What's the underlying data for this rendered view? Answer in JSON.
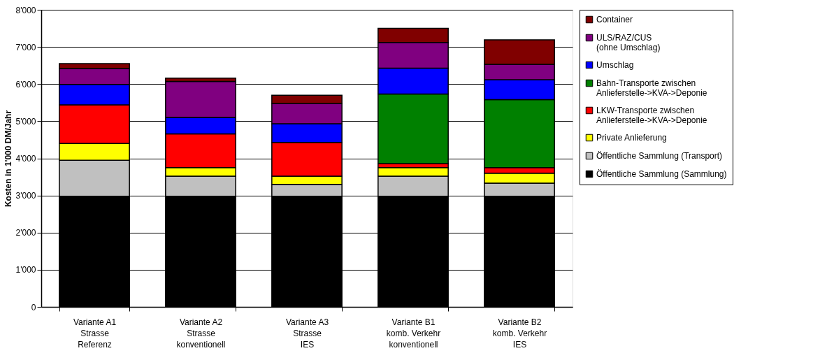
{
  "chart_data": {
    "type": "bar",
    "stacked": true,
    "ylabel": "Kosten in 1'000 DM/Jahr",
    "categories": [
      "Variante A1\nStrasse\nReferenz",
      "Variante A2\nStrasse\nkonventionell",
      "Variante A3\nStrasse\nIES",
      "Variante B1\nkomb. Verkehr\nkonventionell",
      "Variante B2\nkomb. Verkehr\nIES"
    ],
    "series": [
      {
        "name": "Öffentliche Sammlung (Sammlung)",
        "color": "#000000",
        "values": [
          2980,
          2980,
          2980,
          2980,
          2980
        ]
      },
      {
        "name": "Öffentliche Sammlung (Transport)",
        "color": "#c0c0c0",
        "values": [
          970,
          540,
          320,
          540,
          350
        ]
      },
      {
        "name": "Private Anlieferung",
        "color": "#ffff00",
        "values": [
          450,
          230,
          220,
          230,
          270
        ]
      },
      {
        "name": "LKW-Transporte zwischen\nAnlieferstelle->KVA->Deponie",
        "color": "#ff0000",
        "values": [
          1040,
          910,
          910,
          110,
          150
        ]
      },
      {
        "name": "Bahn-Transporte zwischen\nAnlieferstelle->KVA->Deponie",
        "color": "#008000",
        "values": [
          null,
          null,
          null,
          1870,
          1830
        ]
      },
      {
        "name": "Umschlag",
        "color": "#0000ff",
        "values": [
          550,
          440,
          500,
          700,
          540
        ]
      },
      {
        "name": "ULS/RAZ/CUS\n(ohne Umschlag)",
        "color": "#800080",
        "values": [
          430,
          970,
          550,
          690,
          410
        ]
      },
      {
        "name": "Container",
        "color": "#800000",
        "values": [
          130,
          90,
          220,
          380,
          660
        ]
      }
    ],
    "ylim": [
      0,
      8000
    ],
    "yticks": [
      0,
      {
        "value": 1000,
        "label": "1'000"
      },
      {
        "value": 2000,
        "label": "2'000"
      },
      {
        "value": 3000,
        "label": "3'000"
      },
      {
        "value": 4000,
        "label": "4'000"
      },
      {
        "value": 5000,
        "label": "5'000"
      },
      {
        "value": 6000,
        "label": "6'000"
      },
      {
        "value": 7000,
        "label": "7'000"
      },
      {
        "value": 8000,
        "label": "8'000"
      }
    ],
    "grid": "y",
    "legend": "right"
  }
}
